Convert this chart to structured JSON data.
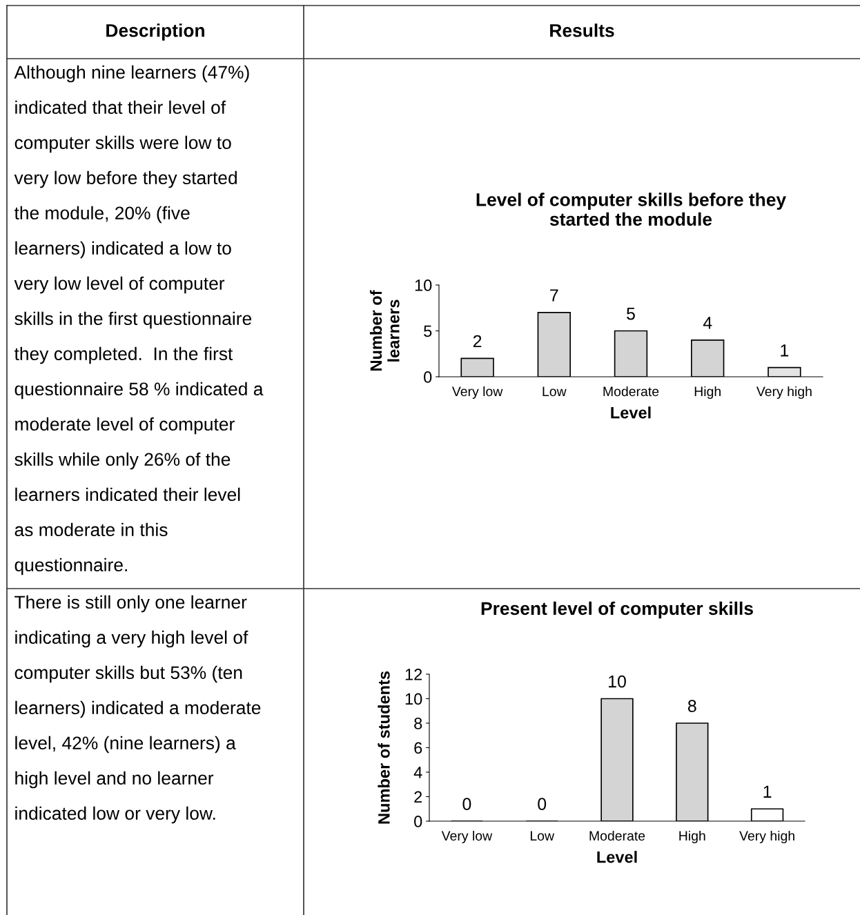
{
  "chart_data": [
    {
      "type": "other",
      "title": "Description"
    },
    {
      "type": "other",
      "title": "Results"
    },
    {
      "type": "other",
      "annotations": [
        "Although nine learners (47%)",
        "indicated that their level of",
        "computer skills were low to",
        "very low before they started",
        "the module, 20% (five",
        "learners) indicated a low to",
        "very low level of computer",
        "skills in the first questionnaire",
        "they completed.  In the first",
        "questionnaire 58 % indicated a",
        "moderate level of computer",
        "skills while only 26% of the",
        "learners indicated their level",
        "as moderate in this",
        "questionnaire."
      ]
    },
    {
      "type": "bar",
      "title": "Level of computer skills before they\nstarted the module",
      "xlabel": "Level",
      "ylabel": "Number of\nlearners",
      "categories": [
        "Very low",
        "Low",
        "Moderate",
        "High",
        "Very high"
      ],
      "values": [
        2,
        7,
        5,
        4,
        1
      ],
      "colors": [
        "#d4d4d4",
        "#d4d4d4",
        "#d4d4d4",
        "#d4d4d4",
        "#e4e4e4"
      ],
      "ylim": [
        0,
        10
      ],
      "yticks": [
        0,
        5,
        10
      ],
      "data_labels": true,
      "grid": false,
      "legend": false
    },
    {
      "type": "other",
      "annotations": [
        "There is still only one learner",
        "indicating a very high level of",
        "computer skills but 53% (ten",
        "learners) indicated a moderate",
        "level, 42% (nine learners) a",
        "high level and no learner",
        "indicated low or very low."
      ]
    },
    {
      "type": "bar",
      "title": "Present level of computer skills",
      "xlabel": "Level",
      "ylabel": "Number of students",
      "categories": [
        "Very low",
        "Low",
        "Moderate",
        "High",
        "Very high"
      ],
      "values": [
        0,
        0,
        10,
        8,
        1
      ],
      "colors": [
        "#000000",
        "#000000",
        "#d4d4d4",
        "#d4d4d4",
        "#ffffff"
      ],
      "ylim": [
        0,
        12
      ],
      "yticks": [
        0,
        2,
        4,
        6,
        8,
        10,
        12
      ],
      "data_labels": true,
      "grid": false,
      "legend": false
    }
  ]
}
